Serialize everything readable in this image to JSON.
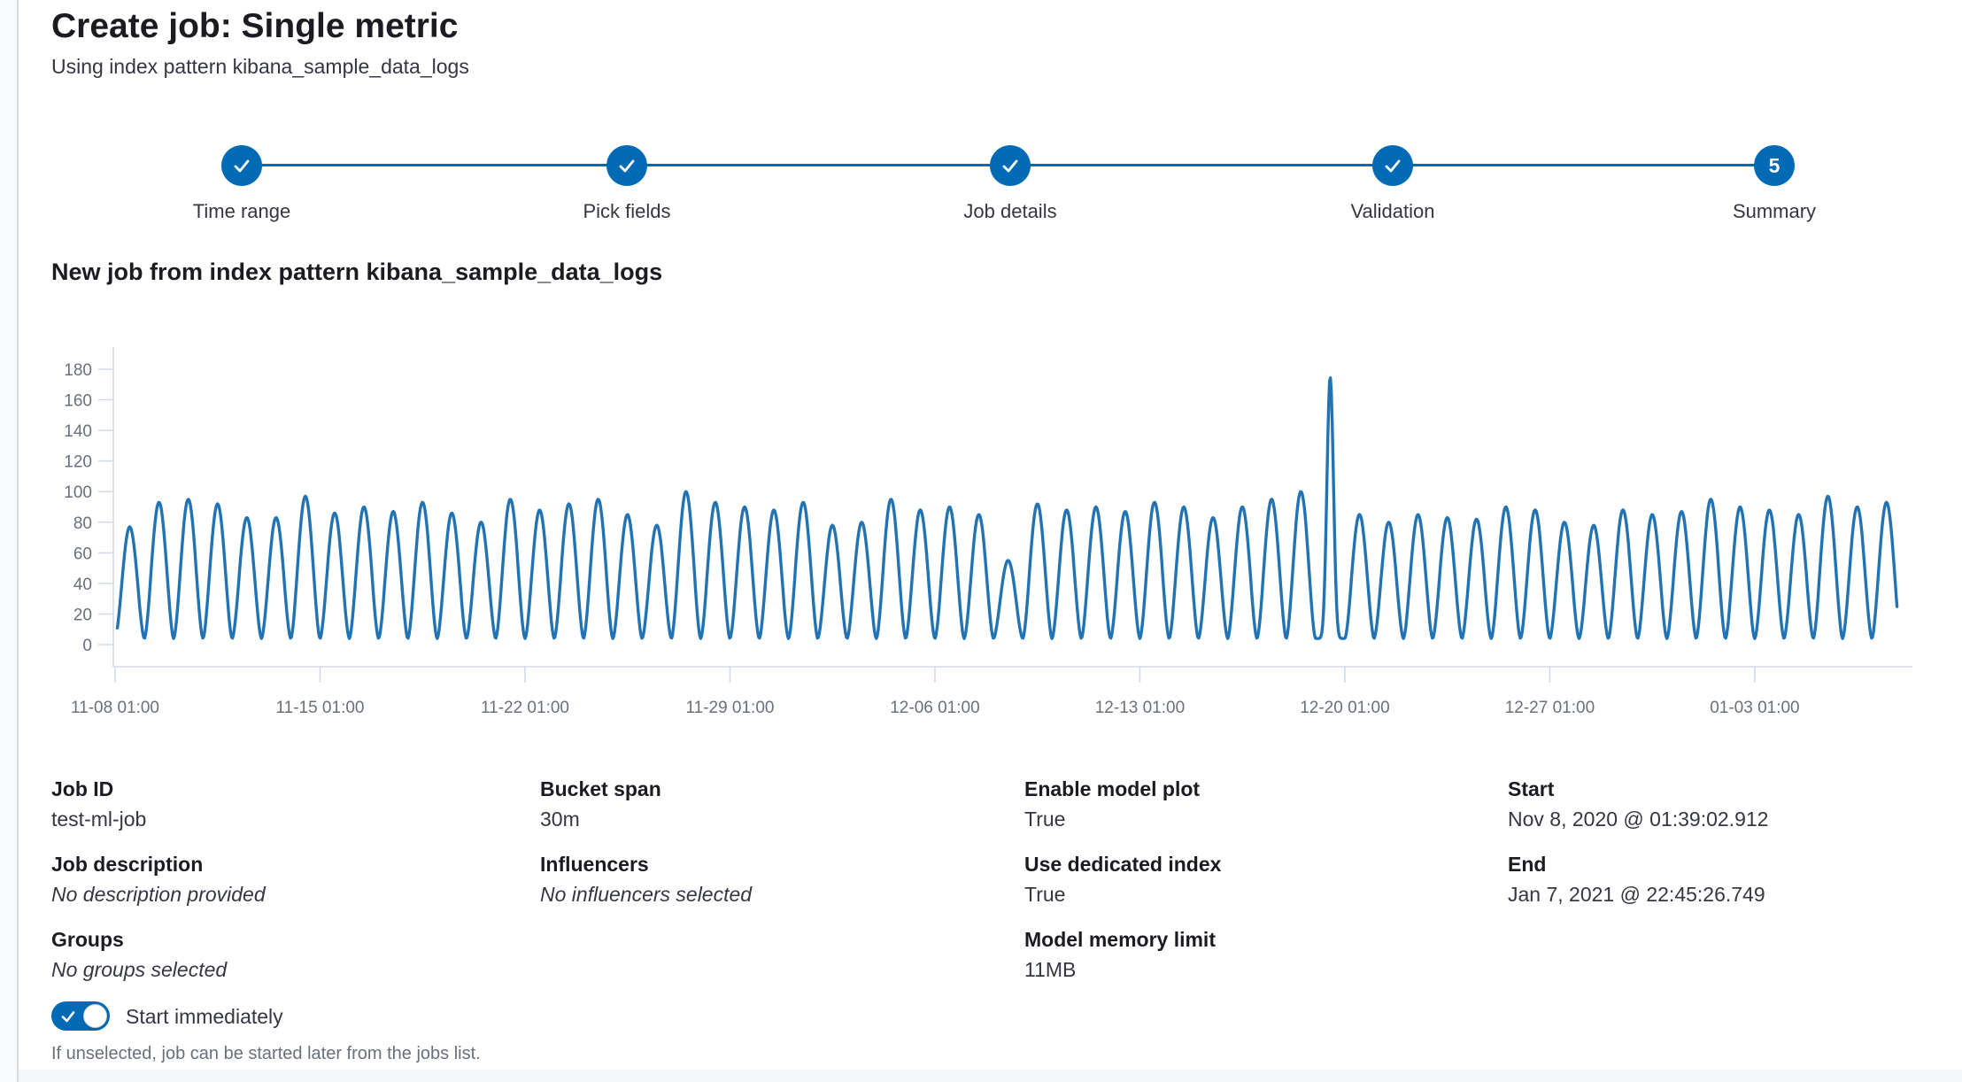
{
  "page": {
    "title": "Create job: Single metric",
    "subtitle": "Using index pattern kibana_sample_data_logs"
  },
  "stepper": {
    "steps": [
      {
        "label": "Time range",
        "status": "complete"
      },
      {
        "label": "Pick fields",
        "status": "complete"
      },
      {
        "label": "Job details",
        "status": "complete"
      },
      {
        "label": "Validation",
        "status": "complete"
      },
      {
        "label": "Summary",
        "status": "current",
        "number": "5"
      }
    ]
  },
  "section_heading": "New job from index pattern kibana_sample_data_logs",
  "chart_data": {
    "type": "line",
    "title": "New job from index pattern kibana_sample_data_logs",
    "xlabel": "",
    "ylabel": "",
    "x_tick_labels": [
      "11-08 01:00",
      "11-15 01:00",
      "11-22 01:00",
      "11-29 01:00",
      "12-06 01:00",
      "12-13 01:00",
      "12-20 01:00",
      "12-27 01:00",
      "01-03 01:00"
    ],
    "x_tick_interval_days": 7,
    "y_tick_values": [
      0,
      20,
      40,
      60,
      80,
      100,
      120,
      140,
      160,
      180
    ],
    "ylim": [
      0,
      190
    ],
    "days_span": 61,
    "grid": "ticks-only",
    "legend": "none",
    "line_color": "#2173B4",
    "pattern": "daily periodic event-rate wave oscillating between trough and daily peak",
    "trough_value": 4,
    "start_value": 15,
    "daily_peaks": [
      77,
      93,
      95,
      92,
      83,
      83,
      97,
      86,
      90,
      87,
      93,
      86,
      80,
      95,
      88,
      92,
      95,
      85,
      78,
      100,
      93,
      90,
      88,
      93,
      78,
      80,
      95,
      88,
      90,
      85,
      55,
      92,
      88,
      90,
      87,
      93,
      90,
      83,
      90,
      95,
      100,
      175,
      85,
      80,
      85,
      83,
      82,
      90,
      88,
      80,
      78,
      88,
      85,
      87,
      95,
      90,
      88,
      85,
      97,
      90,
      93
    ],
    "anomaly": {
      "day_index": 41,
      "peak": 175,
      "near_tick": "12-20 01:00"
    }
  },
  "details": {
    "columns": [
      {
        "items": [
          {
            "label": "Job ID",
            "value": "test-ml-job",
            "italic": false
          },
          {
            "label": "Job description",
            "value": "No description provided",
            "italic": true
          },
          {
            "label": "Groups",
            "value": "No groups selected",
            "italic": true
          }
        ]
      },
      {
        "items": [
          {
            "label": "Bucket span",
            "value": "30m",
            "italic": false
          },
          {
            "label": "Influencers",
            "value": "No influencers selected",
            "italic": true
          }
        ]
      },
      {
        "items": [
          {
            "label": "Enable model plot",
            "value": "True",
            "italic": false
          },
          {
            "label": "Use dedicated index",
            "value": "True",
            "italic": false
          },
          {
            "label": "Model memory limit",
            "value": "11MB",
            "italic": false
          }
        ]
      },
      {
        "items": [
          {
            "label": "Start",
            "value": "Nov 8, 2020 @ 01:39:02.912",
            "italic": false
          },
          {
            "label": "End",
            "value": "Jan 7, 2021 @ 22:45:26.749",
            "italic": false
          }
        ]
      }
    ]
  },
  "toggle": {
    "label": "Start immediately",
    "help": "If unselected, job can be started later from the jobs list.",
    "on": true
  },
  "colors": {
    "primary": "#006BB4",
    "chart_line": "#2173B4",
    "text_dark": "#1A1C21",
    "text": "#343741",
    "text_subdued": "#69707D",
    "axis_line": "#D3DAE6"
  }
}
